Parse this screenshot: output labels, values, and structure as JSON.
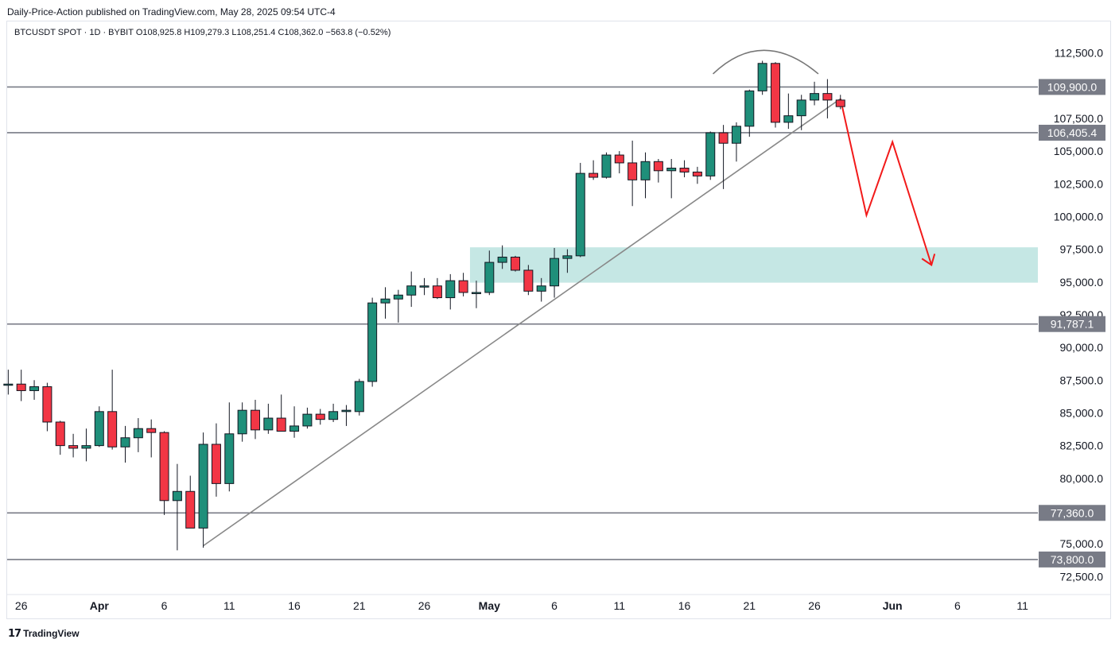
{
  "header": {
    "published": "Daily-Price-Action published on TradingView.com, May 28, 2025 09:54 UTC-4"
  },
  "legend": {
    "symbol": "BTCUSDT SPOT · 1D · BYBIT",
    "open": "O108,925.8",
    "high": "H109,279.3",
    "low": "L108,251.4",
    "close": "C108,362.0",
    "change": "−563.8 (−0.52%)"
  },
  "footer": {
    "logo": "𝟭𝟳",
    "brand": "TradingView"
  },
  "colors": {
    "up": "#1f8f7a",
    "down": "#f23645",
    "down_dark": "#b5474f",
    "level_line": "#787b86",
    "badge": "#787b86",
    "zone": "#b2dfdb",
    "projection": "#f21a1a",
    "trendline": "#888888"
  },
  "chart_data": {
    "type": "candlestick",
    "symbol": "BTCUSDT",
    "interval": "1D",
    "y_range": [
      71500,
      114500
    ],
    "y_ticks": [
      "112,500.0",
      "107,500.0",
      "105,000.0",
      "102,500.0",
      "100,000.0",
      "97,500.0",
      "95,000.0",
      "92,500.0",
      "90,000.0",
      "87,500.0",
      "85,000.0",
      "82,500.0",
      "80,000.0",
      "75,000.0",
      "72,500.0"
    ],
    "y_tick_values": [
      112500,
      107500,
      105000,
      102500,
      100000,
      97500,
      95000,
      92500,
      90000,
      87500,
      85000,
      82500,
      80000,
      75000,
      72500
    ],
    "x_labels": [
      "26",
      "Apr",
      "6",
      "11",
      "16",
      "21",
      "26",
      "May",
      "6",
      "11",
      "16",
      "21",
      "26",
      "Jun",
      "6",
      "11"
    ],
    "x_label_days": [
      -6,
      0,
      5,
      10,
      15,
      20,
      25,
      30,
      35,
      40,
      45,
      50,
      55,
      61,
      66,
      71
    ],
    "levels": [
      {
        "label": "109,900.0",
        "value": 109900
      },
      {
        "label": "106,405.4",
        "value": 106405.4
      },
      {
        "label": "91,787.1",
        "value": 91787.1
      },
      {
        "label": "77,360.0",
        "value": 77360
      },
      {
        "label": "73,800.0",
        "value": 73800
      }
    ],
    "zone": {
      "from": 94950,
      "to": 97650,
      "start_day": 29
    },
    "trendline": {
      "start": [
        8,
        74850
      ],
      "end": [
        57,
        109000
      ]
    },
    "projection": [
      [
        57,
        109000
      ],
      [
        59,
        100100
      ],
      [
        61,
        105700
      ],
      [
        64,
        96300
      ]
    ],
    "arc": {
      "start": [
        47.2,
        110900
      ],
      "peak": [
        51,
        112800
      ],
      "end": [
        55.3,
        110900
      ]
    },
    "candles": [
      {
        "d": -7,
        "o": 87200,
        "h": 88300,
        "l": 86400,
        "c": 87200
      },
      {
        "d": -6,
        "o": 87200,
        "h": 88300,
        "l": 85900,
        "c": 86700
      },
      {
        "d": -5,
        "o": 86700,
        "h": 87500,
        "l": 86000,
        "c": 87000
      },
      {
        "d": -4,
        "o": 87000,
        "h": 87300,
        "l": 83600,
        "c": 84300
      },
      {
        "d": -3,
        "o": 84300,
        "h": 84400,
        "l": 81800,
        "c": 82500
      },
      {
        "d": -2,
        "o": 82500,
        "h": 83400,
        "l": 81600,
        "c": 82300
      },
      {
        "d": -1,
        "o": 82300,
        "h": 83800,
        "l": 81300,
        "c": 82500
      },
      {
        "d": 0,
        "o": 82500,
        "h": 85500,
        "l": 82400,
        "c": 85100
      },
      {
        "d": 1,
        "o": 85100,
        "h": 88300,
        "l": 82200,
        "c": 82400
      },
      {
        "d": 2,
        "o": 82400,
        "h": 84000,
        "l": 81200,
        "c": 83100
      },
      {
        "d": 3,
        "o": 83100,
        "h": 84600,
        "l": 82000,
        "c": 83800
      },
      {
        "d": 4,
        "o": 83800,
        "h": 84500,
        "l": 81600,
        "c": 83500
      },
      {
        "d": 5,
        "o": 83500,
        "h": 83600,
        "l": 77200,
        "c": 78300
      },
      {
        "d": 6,
        "o": 78300,
        "h": 81100,
        "l": 74500,
        "c": 79000
      },
      {
        "d": 7,
        "o": 79000,
        "h": 80200,
        "l": 76300,
        "c": 76200
      },
      {
        "d": 8,
        "o": 76200,
        "h": 83500,
        "l": 74700,
        "c": 82600
      },
      {
        "d": 9,
        "o": 82600,
        "h": 84200,
        "l": 78600,
        "c": 79600
      },
      {
        "d": 10,
        "o": 79600,
        "h": 85800,
        "l": 79000,
        "c": 83400
      },
      {
        "d": 11,
        "o": 83400,
        "h": 85800,
        "l": 82800,
        "c": 85200
      },
      {
        "d": 12,
        "o": 85200,
        "h": 86000,
        "l": 83000,
        "c": 83700
      },
      {
        "d": 13,
        "o": 83700,
        "h": 85700,
        "l": 83400,
        "c": 84600
      },
      {
        "d": 14,
        "o": 84600,
        "h": 86400,
        "l": 83600,
        "c": 83600
      },
      {
        "d": 15,
        "o": 83600,
        "h": 85500,
        "l": 83100,
        "c": 84000
      },
      {
        "d": 16,
        "o": 84000,
        "h": 85400,
        "l": 83800,
        "c": 84900
      },
      {
        "d": 17,
        "o": 84900,
        "h": 85300,
        "l": 84100,
        "c": 84500
      },
      {
        "d": 18,
        "o": 84500,
        "h": 85700,
        "l": 84300,
        "c": 85100
      },
      {
        "d": 19,
        "o": 85100,
        "h": 85600,
        "l": 84000,
        "c": 85200
      },
      {
        "d": 20,
        "o": 85100,
        "h": 87600,
        "l": 84800,
        "c": 87400
      },
      {
        "d": 21,
        "o": 87400,
        "h": 93800,
        "l": 87000,
        "c": 93400
      },
      {
        "d": 22,
        "o": 93400,
        "h": 94600,
        "l": 92200,
        "c": 93700
      },
      {
        "d": 23,
        "o": 93700,
        "h": 94400,
        "l": 91900,
        "c": 94000
      },
      {
        "d": 24,
        "o": 94000,
        "h": 95800,
        "l": 93100,
        "c": 94700
      },
      {
        "d": 25,
        "o": 94700,
        "h": 95300,
        "l": 94000,
        "c": 94700
      },
      {
        "d": 26,
        "o": 94700,
        "h": 95300,
        "l": 93700,
        "c": 93800
      },
      {
        "d": 27,
        "o": 93800,
        "h": 95600,
        "l": 92900,
        "c": 95100
      },
      {
        "d": 28,
        "o": 95100,
        "h": 95700,
        "l": 93900,
        "c": 94200
      },
      {
        "d": 29,
        "o": 94200,
        "h": 95100,
        "l": 93000,
        "c": 94200
      },
      {
        "d": 30,
        "o": 94200,
        "h": 97400,
        "l": 94000,
        "c": 96500
      },
      {
        "d": 31,
        "o": 96500,
        "h": 97800,
        "l": 96000,
        "c": 96900
      },
      {
        "d": 32,
        "o": 96900,
        "h": 97000,
        "l": 95800,
        "c": 95900
      },
      {
        "d": 33,
        "o": 95900,
        "h": 96300,
        "l": 94000,
        "c": 94300
      },
      {
        "d": 34,
        "o": 94300,
        "h": 95300,
        "l": 93500,
        "c": 94700
      },
      {
        "d": 35,
        "o": 94700,
        "h": 97600,
        "l": 93800,
        "c": 96800
      },
      {
        "d": 36,
        "o": 96800,
        "h": 97500,
        "l": 95700,
        "c": 97000
      },
      {
        "d": 37,
        "o": 97000,
        "h": 104100,
        "l": 96900,
        "c": 103300
      },
      {
        "d": 38,
        "o": 103300,
        "h": 104300,
        "l": 102800,
        "c": 103000
      },
      {
        "d": 39,
        "o": 103000,
        "h": 104900,
        "l": 102900,
        "c": 104700
      },
      {
        "d": 40,
        "o": 104700,
        "h": 105000,
        "l": 103300,
        "c": 104100
      },
      {
        "d": 41,
        "o": 104100,
        "h": 105800,
        "l": 100800,
        "c": 102800
      },
      {
        "d": 42,
        "o": 102800,
        "h": 104900,
        "l": 101400,
        "c": 104200
      },
      {
        "d": 43,
        "o": 104200,
        "h": 104400,
        "l": 102600,
        "c": 103500
      },
      {
        "d": 44,
        "o": 103500,
        "h": 104400,
        "l": 101400,
        "c": 103700
      },
      {
        "d": 45,
        "o": 103700,
        "h": 104300,
        "l": 103000,
        "c": 103400
      },
      {
        "d": 46,
        "o": 103400,
        "h": 103800,
        "l": 102500,
        "c": 103100
      },
      {
        "d": 47,
        "o": 103100,
        "h": 106500,
        "l": 102800,
        "c": 106400
      },
      {
        "d": 48,
        "o": 106400,
        "h": 107000,
        "l": 102100,
        "c": 105600
      },
      {
        "d": 49,
        "o": 105600,
        "h": 107200,
        "l": 104200,
        "c": 106900
      },
      {
        "d": 50,
        "o": 106900,
        "h": 109700,
        "l": 106100,
        "c": 109600
      },
      {
        "d": 51,
        "o": 109600,
        "h": 111900,
        "l": 109300,
        "c": 111700
      },
      {
        "d": 52,
        "o": 111700,
        "h": 111800,
        "l": 106800,
        "c": 107200
      },
      {
        "d": 53,
        "o": 107200,
        "h": 109400,
        "l": 106700,
        "c": 107700
      },
      {
        "d": 54,
        "o": 107700,
        "h": 109300,
        "l": 106600,
        "c": 108900
      },
      {
        "d": 55,
        "o": 108900,
        "h": 110300,
        "l": 108500,
        "c": 109400
      },
      {
        "d": 56,
        "o": 109400,
        "h": 110500,
        "l": 107500,
        "c": 108900
      },
      {
        "d": 57,
        "o": 108900,
        "h": 109300,
        "l": 108200,
        "c": 108400
      }
    ]
  }
}
